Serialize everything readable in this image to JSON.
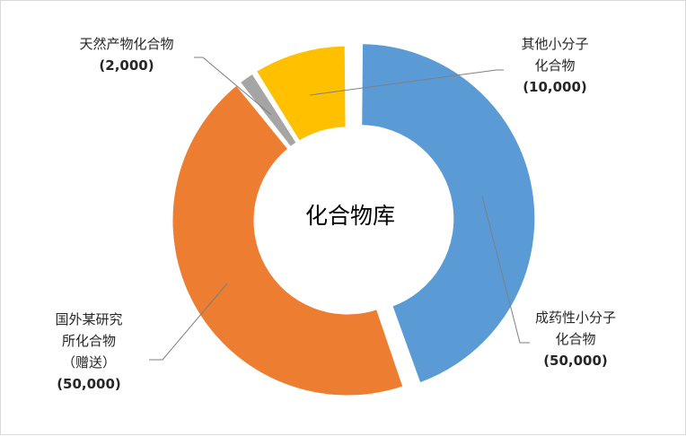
{
  "chart_data": {
    "type": "pie",
    "variant": "doughnut",
    "center_label": "化合物库",
    "slices": [
      {
        "label": [
          "成药性小分子",
          "化合物"
        ],
        "value": 50000,
        "value_label": "(50,000)",
        "color": "#5B9BD5",
        "exploded": true
      },
      {
        "label": [
          "国外某研究",
          "所化合物",
          "（赠送）"
        ],
        "value": 50000,
        "value_label": "(50,000)",
        "color": "#ED7D31",
        "exploded": false
      },
      {
        "label": [
          "天然产物化合物"
        ],
        "value": 2000,
        "value_label": "(2,000)",
        "color": "#A5A5A5",
        "exploded": false
      },
      {
        "label": [
          "其他小分子",
          "化合物"
        ],
        "value": 10000,
        "value_label": "(10,000)",
        "color": "#FFC000",
        "exploded": false
      }
    ]
  }
}
